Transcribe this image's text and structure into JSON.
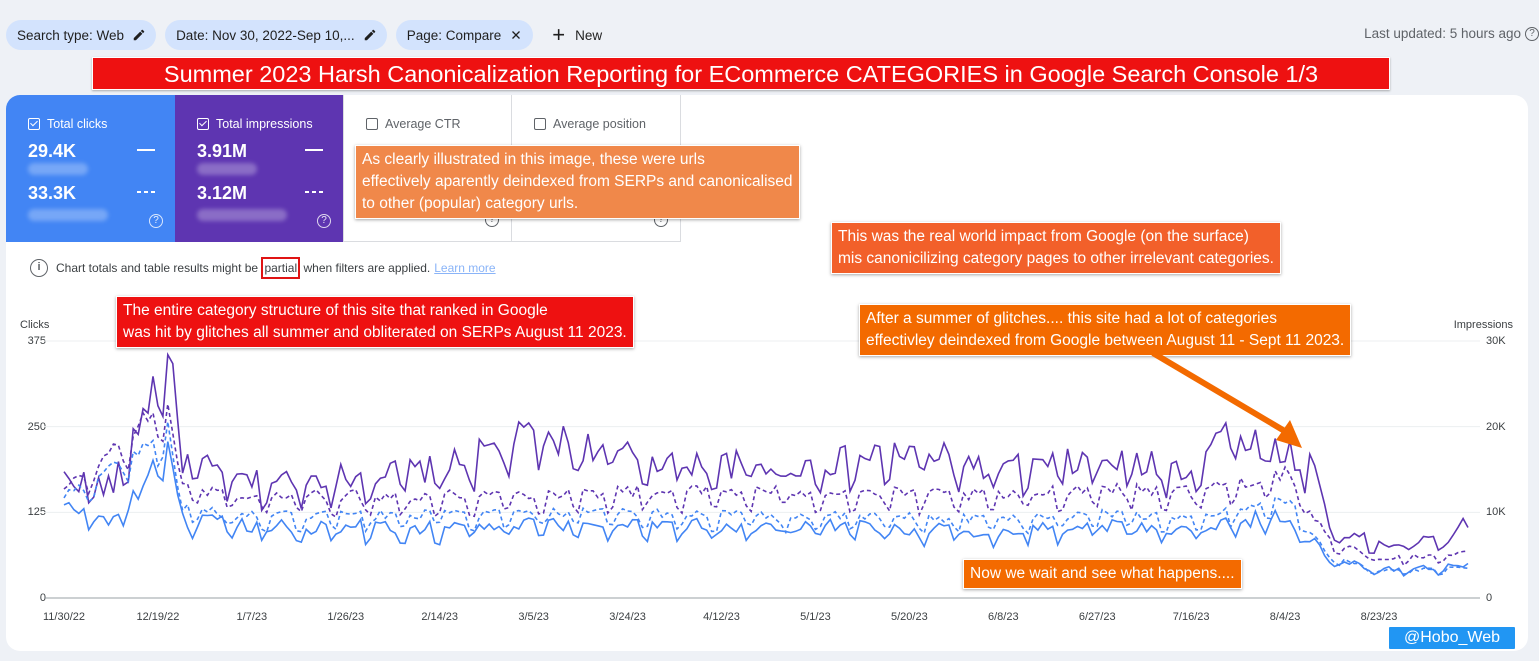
{
  "filters": {
    "chips": [
      {
        "label": "Search type: Web",
        "icon": "pencil-icon"
      },
      {
        "label": "Date: Nov 30, 2022-Sep 10,...",
        "icon": "pencil-icon"
      },
      {
        "label": "Page: Compare",
        "icon": "close-icon"
      }
    ],
    "new_label": "New",
    "last_updated": "Last updated: 5 hours ago"
  },
  "banner": "Summer 2023 Harsh Canonicalization Reporting for ECommerce CATEGORIES in Google Search Console 1/3",
  "metrics": {
    "clicks": {
      "label": "Total clicks",
      "value": "29.4K",
      "compare": "33.3K",
      "color": "#4285f4"
    },
    "impressions": {
      "label": "Total impressions",
      "value": "3.91M",
      "compare": "3.12M",
      "color": "#5e35b1"
    },
    "ctr": {
      "label": "Average CTR"
    },
    "position": {
      "label": "Average position"
    }
  },
  "notice": {
    "before": "Chart totals and table results might be ",
    "highlight": "partial",
    "after": " when filters are applied.",
    "link": "Learn more"
  },
  "annotations": {
    "a1": [
      "As clearly illustrated in this image, these were urls",
      "effectively aparently deindexed from SERPs and canonicalised",
      "to other (popular) category urls."
    ],
    "a2": [
      "This was the real world impact from Google (on the surface)",
      "mis canonicilizing category pages to other irrelevant categories."
    ],
    "a3": [
      "The entire category structure of this site that ranked in Google",
      "was hit by glitches all summer and obliterated on SERPs August 11 2023."
    ],
    "a4": [
      "After a summer of glitches.... this site had a lot of categories",
      "effectivley deindexed from Google between August 11 - Sept 11 2023."
    ],
    "a5": "Now we wait and see what happens....",
    "credit": "@Hobo_Web"
  },
  "chart_data": {
    "type": "line",
    "left_axis": {
      "title": "Clicks",
      "ticks": [
        "375",
        "250",
        "125",
        "0"
      ],
      "range": [
        0,
        375
      ]
    },
    "right_axis": {
      "title": "Impressions",
      "ticks": [
        "30K",
        "20K",
        "10K",
        "0"
      ],
      "range": [
        0,
        30000
      ]
    },
    "x_ticks": [
      "11/30/22",
      "12/19/22",
      "1/7/23",
      "1/26/23",
      "2/14/23",
      "3/5/23",
      "3/24/23",
      "4/12/23",
      "5/1/23",
      "5/20/23",
      "6/8/23",
      "6/27/23",
      "7/16/23",
      "8/4/23",
      "8/23/23"
    ],
    "series": [
      {
        "style": "solid",
        "color": "#5e35b1",
        "axis": "right",
        "keypoints": [
          [
            "2022-11-30",
            13500
          ],
          [
            "2022-12-10",
            12500
          ],
          [
            "2022-12-21",
            28000
          ],
          [
            "2022-12-24",
            15500
          ],
          [
            "2023-01-07",
            13000
          ],
          [
            "2023-02-14",
            14500
          ],
          [
            "2023-03-05",
            18500
          ],
          [
            "2023-03-24",
            16000
          ],
          [
            "2023-04-12",
            15000
          ],
          [
            "2023-05-01",
            15000
          ],
          [
            "2023-05-20",
            16500
          ],
          [
            "2023-06-08",
            14500
          ],
          [
            "2023-06-27",
            15500
          ],
          [
            "2023-07-16",
            14500
          ],
          [
            "2023-07-22",
            19000
          ],
          [
            "2023-08-04",
            16500
          ],
          [
            "2023-08-10",
            15000
          ],
          [
            "2023-08-13",
            8000
          ],
          [
            "2023-08-23",
            6000
          ],
          [
            "2023-09-05",
            6500
          ],
          [
            "2023-09-10",
            8500
          ]
        ]
      },
      {
        "style": "dashed",
        "color": "#5e35b1",
        "axis": "right",
        "keypoints": [
          [
            "2022-11-30",
            12000
          ],
          [
            "2022-12-21",
            22000
          ],
          [
            "2022-12-24",
            12500
          ],
          [
            "2023-01-07",
            11500
          ],
          [
            "2023-02-14",
            11500
          ],
          [
            "2023-03-24",
            12000
          ],
          [
            "2023-05-01",
            12000
          ],
          [
            "2023-06-08",
            11500
          ],
          [
            "2023-06-27",
            12500
          ],
          [
            "2023-07-16",
            12000
          ],
          [
            "2023-08-04",
            14000
          ],
          [
            "2023-08-13",
            6500
          ],
          [
            "2023-08-23",
            4500
          ],
          [
            "2023-09-10",
            5000
          ]
        ]
      },
      {
        "style": "solid",
        "color": "#4285f4",
        "axis": "left",
        "keypoints": [
          [
            "2022-11-30",
            128
          ],
          [
            "2022-12-10",
            110
          ],
          [
            "2022-12-21",
            200
          ],
          [
            "2022-12-24",
            110
          ],
          [
            "2023-01-07",
            100
          ],
          [
            "2023-02-14",
            100
          ],
          [
            "2023-03-24",
            105
          ],
          [
            "2023-05-01",
            100
          ],
          [
            "2023-06-08",
            95
          ],
          [
            "2023-06-27",
            105
          ],
          [
            "2023-07-16",
            98
          ],
          [
            "2023-08-04",
            118
          ],
          [
            "2023-08-13",
            55
          ],
          [
            "2023-08-23",
            40
          ],
          [
            "2023-09-10",
            45
          ]
        ]
      },
      {
        "style": "dashed",
        "color": "#4285f4",
        "axis": "left",
        "keypoints": [
          [
            "2022-11-30",
            140
          ],
          [
            "2022-12-21",
            240
          ],
          [
            "2022-12-24",
            125
          ],
          [
            "2023-01-07",
            115
          ],
          [
            "2023-02-14",
            118
          ],
          [
            "2023-03-24",
            120
          ],
          [
            "2023-05-01",
            115
          ],
          [
            "2023-06-08",
            112
          ],
          [
            "2023-06-27",
            120
          ],
          [
            "2023-07-16",
            112
          ],
          [
            "2023-08-04",
            140
          ],
          [
            "2023-08-13",
            60
          ],
          [
            "2023-08-23",
            38
          ],
          [
            "2023-09-10",
            42
          ]
        ]
      }
    ]
  }
}
